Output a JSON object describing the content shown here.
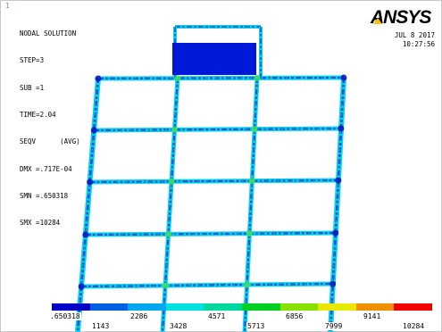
{
  "window_number": "1",
  "info": {
    "title": "NODAL SOLUTION",
    "lines": [
      "STEP=3",
      "SUB =1",
      "TIME=2.04",
      "SEQV      (AVG)",
      "DMX =.717E-04",
      "SMN =.650318",
      "SMX =10284"
    ]
  },
  "logo_text": "ANSYS",
  "logo_colors": {
    "text": "#000000",
    "accent": "#f5c400"
  },
  "date": "JUL  8 2017",
  "time": "10:27:56",
  "legend": {
    "colors": [
      "#0000c8",
      "#0060e0",
      "#00a8f0",
      "#00e0e0",
      "#00d8a0",
      "#00d020",
      "#88e000",
      "#e8e800",
      "#f09000",
      "#f00000"
    ],
    "upper_labels": [
      ".650318",
      "2286",
      "4571",
      "6856",
      "9141"
    ],
    "lower_labels": [
      "1143",
      "3428",
      "5713",
      "7999",
      "10284"
    ]
  },
  "model_colors": {
    "edge": "#2850e0",
    "low": "#0010c0",
    "mid": "#00d8e8",
    "high": "#40e060",
    "load_block": "#0018d8"
  }
}
